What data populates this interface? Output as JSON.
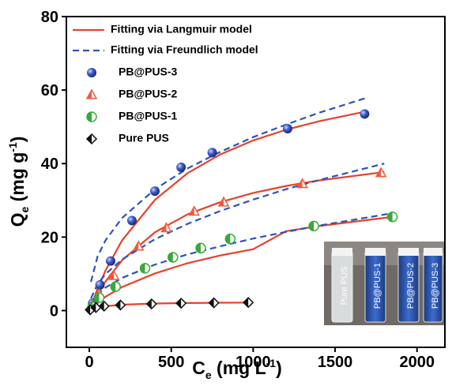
{
  "chart_data": {
    "type": "scatter",
    "xlabel": [
      "C",
      "e",
      " (mg L",
      "-1",
      ")"
    ],
    "ylabel": [
      "Q",
      "e",
      " (mg g",
      "-1",
      ")"
    ],
    "xlim": [
      -140,
      2170
    ],
    "ylim": [
      -10,
      80
    ],
    "xticks": [
      0,
      500,
      1000,
      1500,
      2000
    ],
    "yticks": [
      0,
      20,
      40,
      60,
      80
    ],
    "fits": [
      {
        "name": "Fitting via Langmuir model",
        "color": "#e8412c",
        "dashed": false,
        "curves": [
          {
            "x": [
              0,
              50,
              100,
              200,
              400,
              600,
              800,
              1000,
              1200,
              1400,
              1700
            ],
            "values": [
              0,
              5.9,
              11.0,
              19.1,
              30.1,
              37.4,
              42.5,
              46.3,
              49.2,
              51.5,
              54.3
            ]
          },
          {
            "x": [
              0,
              50,
              100,
              200,
              400,
              600,
              800,
              1000,
              1200,
              1400,
              1800
            ],
            "values": [
              0,
              4.4,
              8.0,
              13.7,
              21.3,
              26.2,
              29.5,
              32.0,
              33.9,
              35.4,
              37.7
            ]
          },
          {
            "x": [
              0,
              50,
              100,
              200,
              400,
              600,
              800,
              1000,
              1200,
              1400,
              1850
            ],
            "values": [
              0,
              2.0,
              3.8,
              6.4,
              10.1,
              12.9,
              15.0,
              16.7,
              21.6,
              23.0,
              25.5
            ]
          },
          {
            "x": [
              0,
              20,
              50,
              100,
              200,
              400,
              600,
              800,
              1000
            ],
            "values": [
              0,
              0.4,
              0.8,
              1.2,
              1.6,
              1.92,
              2.06,
              2.13,
              2.18
            ]
          }
        ]
      },
      {
        "name": "Fitting via Freundlich model",
        "color": "#2f52b8",
        "dashed": true,
        "curves": [
          {
            "x": [
              10,
              50,
              100,
              200,
              400,
              600,
              800,
              1000,
              1200,
              1400,
              1700
            ],
            "values": [
              7.8,
              14.7,
              19.2,
              25.2,
              33.0,
              38.7,
              43.2,
              47.2,
              50.6,
              53.8,
              58
            ]
          },
          {
            "x": [
              10,
              50,
              100,
              200,
              400,
              600,
              800,
              1000,
              1200,
              1400,
              1800
            ],
            "values": [
              3.3,
              7.2,
              10.0,
              13.9,
              19.4,
              23.6,
              27.1,
              30.2,
              33.0,
              35.5,
              40
            ]
          },
          {
            "x": [
              10,
              50,
              100,
              200,
              400,
              600,
              800,
              1000,
              1200,
              1400,
              1850
            ],
            "values": [
              2.05,
              4.5,
              6.3,
              8.9,
              12.5,
              15.3,
              17.5,
              19.6,
              21.4,
              23.1,
              26.5
            ]
          }
        ]
      }
    ],
    "series": [
      {
        "name": "PB@PUS-3",
        "color": "#2f4fb0",
        "marker": "sphere",
        "x": [
          20,
          65,
          130,
          260,
          400,
          560,
          750,
          1210,
          1680
        ],
        "values": [
          2,
          7,
          13.5,
          24.5,
          32.5,
          39,
          43,
          49.5,
          53.5
        ]
      },
      {
        "name": "PB@PUS-2",
        "color": "#f05a3c",
        "marker": "triangle",
        "x": [
          20,
          60,
          150,
          300,
          470,
          640,
          820,
          1300,
          1780
        ],
        "values": [
          1.5,
          4.5,
          9.5,
          17.5,
          22.5,
          27,
          29.5,
          34.5,
          37.5
        ]
      },
      {
        "name": "PB@PUS-1",
        "color": "#3aa83a",
        "marker": "halfcircle",
        "x": [
          20,
          60,
          160,
          340,
          510,
          680,
          860,
          1370,
          1850
        ],
        "values": [
          1,
          3.5,
          6.5,
          11.5,
          14.5,
          17,
          19.5,
          23,
          25.5
        ]
      },
      {
        "name": "Pure PUS",
        "color": "#111111",
        "marker": "halfdiamond",
        "x": [
          5,
          40,
          90,
          190,
          380,
          560,
          760,
          970
        ],
        "values": [
          0.2,
          0.8,
          1.2,
          1.5,
          1.8,
          2,
          2.1,
          2.2
        ]
      }
    ]
  },
  "inset": {
    "labels": [
      "Pure PUS",
      "PB@PUS-1",
      "PB@PUS-2",
      "PB@PUS-3"
    ]
  }
}
